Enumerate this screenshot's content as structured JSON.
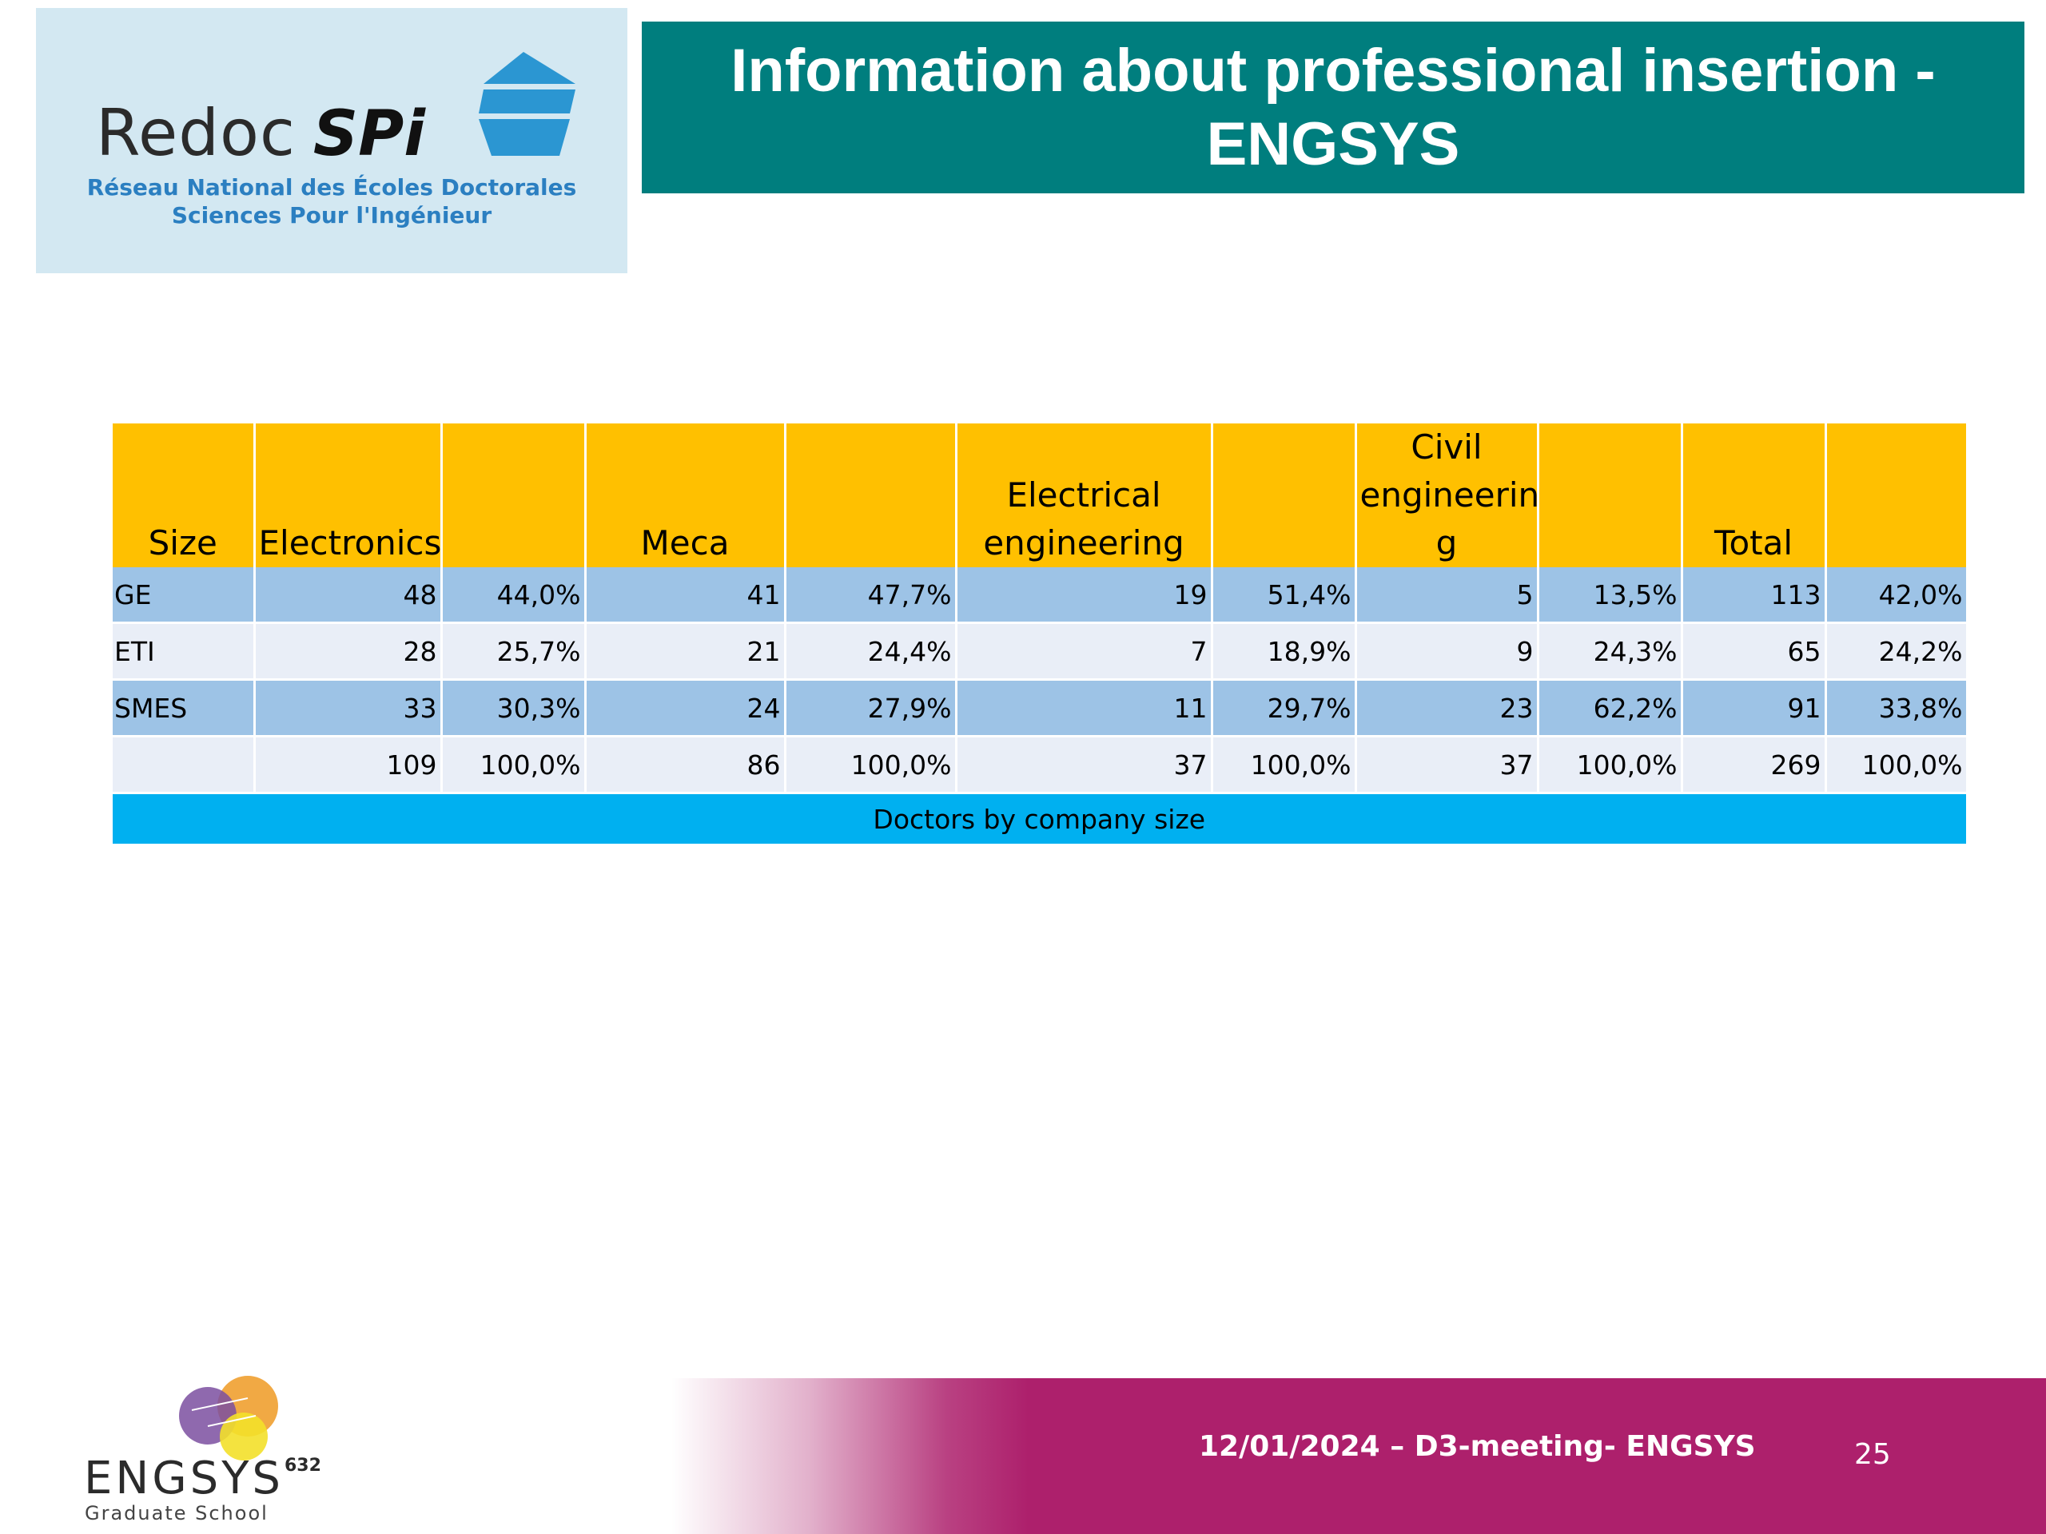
{
  "logo": {
    "name_part1": "Redoc",
    "name_part2": "SPi",
    "subtitle_line1": "Réseau National des Écoles Doctorales",
    "subtitle_line2": "Sciences Pour l'Ingénieur",
    "colors": {
      "background": "#d3e8f2",
      "accent": "#2b7fc1"
    }
  },
  "title": "Information about professional insertion - ENGSYS",
  "table": {
    "headers": [
      "Size",
      "Electronics",
      "",
      "Meca",
      "",
      "Electrical engineering",
      "",
      "Civil engineerin g",
      "",
      "Total",
      ""
    ],
    "rows": [
      {
        "label": "GE",
        "cells": [
          "48",
          "44,0%",
          "41",
          "47,7%",
          "19",
          "51,4%",
          "5",
          "13,5%",
          "113",
          "42,0%"
        ]
      },
      {
        "label": "ETI",
        "cells": [
          "28",
          "25,7%",
          "21",
          "24,4%",
          "7",
          "18,9%",
          "9",
          "24,3%",
          "65",
          "24,2%"
        ]
      },
      {
        "label": "SMES",
        "cells": [
          "33",
          "30,3%",
          "24",
          "27,9%",
          "11",
          "29,7%",
          "23",
          "62,2%",
          "91",
          "33,8%"
        ]
      },
      {
        "label": "",
        "cells": [
          "109",
          "100,0%",
          "86",
          "100,0%",
          "37",
          "100,0%",
          "37",
          "100,0%",
          "269",
          "100,0%"
        ]
      }
    ],
    "caption": "Doctors by company size",
    "colors": {
      "header": "#ffc000",
      "row_blue": "#9dc3e6",
      "row_light": "#e9eef7",
      "caption": "#00b0f0"
    }
  },
  "footer": {
    "text": "12/01/2024 – D3-meeting- ENGSYS",
    "page_number": "25",
    "color": "#ad206c"
  },
  "engsys_logo": {
    "name": "ENGSYS",
    "number": "632",
    "subtitle": "Graduate School"
  }
}
